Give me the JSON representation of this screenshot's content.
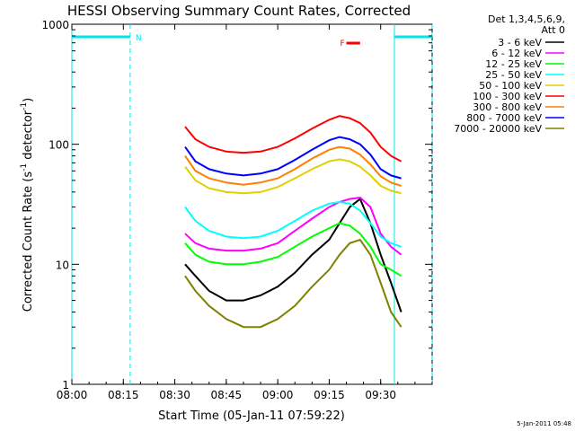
{
  "chart_data": {
    "type": "line",
    "title": "HESSI Observing Summary Count Rates, Corrected",
    "xlabel": "Start Time (05-Jan-11 07:59:22)",
    "ylabel_main": "Corrected Count Rate (s",
    "ylabel_sup1": "-1",
    "ylabel_mid": " detector",
    "ylabel_sup2": "-1",
    "ylabel_end": ")",
    "x_range_minutes": [
      480,
      585
    ],
    "y_range": [
      1,
      1000
    ],
    "y_scale": "log",
    "x_ticks": [
      "08:00",
      "08:15",
      "08:30",
      "08:45",
      "09:00",
      "09:15",
      "09:30"
    ],
    "y_ticks": [
      "1",
      "10",
      "100",
      "1000"
    ],
    "legend_header_1": "Det 1,3,4,5,6,9,",
    "legend_header_2": "Att 0",
    "legend_position": "right",
    "series": [
      {
        "name": "3 - 6 keV",
        "color": "#000000",
        "x": [
          513,
          516,
          520,
          525,
          530,
          535,
          540,
          545,
          550,
          555,
          558,
          561,
          564,
          567,
          570,
          573,
          576
        ],
        "y": [
          10,
          8,
          6,
          5,
          5,
          5.5,
          6.5,
          8.5,
          12,
          16,
          22,
          30,
          35,
          22,
          12,
          7,
          4
        ]
      },
      {
        "name": "6 - 12 keV",
        "color": "#ff00ff",
        "x": [
          513,
          516,
          520,
          525,
          530,
          535,
          540,
          545,
          550,
          555,
          558,
          561,
          564,
          567,
          570,
          573,
          576
        ],
        "y": [
          18,
          15,
          13.5,
          13,
          13,
          13.5,
          15,
          19,
          24,
          30,
          33,
          35,
          36,
          30,
          18,
          14,
          12
        ]
      },
      {
        "name": "12 - 25 keV",
        "color": "#00ff00",
        "x": [
          513,
          516,
          520,
          525,
          530,
          535,
          540,
          545,
          550,
          555,
          558,
          561,
          564,
          567,
          570,
          573,
          576
        ],
        "y": [
          15,
          12,
          10.5,
          10,
          10,
          10.5,
          11.5,
          14,
          17,
          20,
          22,
          21,
          18,
          14,
          10,
          9,
          8
        ]
      },
      {
        "name": "25 - 50 keV",
        "color": "#00ffff",
        "x": [
          513,
          516,
          520,
          525,
          530,
          535,
          540,
          545,
          550,
          555,
          558,
          561,
          564,
          567,
          570,
          573,
          576
        ],
        "y": [
          30,
          23,
          19,
          17,
          16.5,
          17,
          19,
          23,
          28,
          32,
          33,
          32,
          28,
          22,
          17,
          15,
          14
        ]
      },
      {
        "name": "50 - 100 keV",
        "color": "#e0d000",
        "x": [
          513,
          516,
          520,
          525,
          530,
          535,
          540,
          545,
          550,
          555,
          558,
          561,
          564,
          567,
          570,
          573,
          576
        ],
        "y": [
          65,
          50,
          43,
          40,
          39,
          40,
          44,
          52,
          62,
          72,
          75,
          72,
          65,
          55,
          45,
          41,
          39
        ]
      },
      {
        "name": "100 - 300 keV",
        "color": "#ff0000",
        "x": [
          513,
          516,
          520,
          525,
          530,
          535,
          540,
          545,
          550,
          555,
          558,
          561,
          564,
          567,
          570,
          573,
          576
        ],
        "y": [
          140,
          110,
          95,
          87,
          85,
          87,
          95,
          112,
          135,
          160,
          172,
          165,
          150,
          125,
          95,
          80,
          72
        ]
      },
      {
        "name": "300 - 800 keV",
        "color": "#ff8000",
        "x": [
          513,
          516,
          520,
          525,
          530,
          535,
          540,
          545,
          550,
          555,
          558,
          561,
          564,
          567,
          570,
          573,
          576
        ],
        "y": [
          80,
          60,
          52,
          48,
          46,
          48,
          52,
          62,
          76,
          90,
          95,
          92,
          82,
          68,
          54,
          48,
          45
        ]
      },
      {
        "name": "800 - 7000 keV",
        "color": "#0000ff",
        "x": [
          513,
          516,
          520,
          525,
          530,
          535,
          540,
          545,
          550,
          555,
          558,
          561,
          564,
          567,
          570,
          573,
          576
        ],
        "y": [
          95,
          72,
          62,
          57,
          55,
          57,
          62,
          74,
          90,
          108,
          115,
          110,
          100,
          82,
          62,
          55,
          52
        ]
      },
      {
        "name": "7000 - 20000 keV",
        "color": "#808000",
        "x": [
          513,
          516,
          520,
          525,
          530,
          535,
          540,
          545,
          550,
          555,
          558,
          561,
          564,
          567,
          570,
          573,
          576
        ],
        "y": [
          8,
          6,
          4.5,
          3.5,
          3,
          3,
          3.5,
          4.5,
          6.5,
          9,
          12,
          15,
          16,
          12,
          7,
          4,
          3
        ]
      }
    ],
    "annotations": {
      "night_label": "N",
      "flare_label": "F",
      "night_intervals": [
        [
          480,
          497
        ],
        [
          574,
          585
        ]
      ],
      "flare_interval": [
        560,
        564
      ],
      "dashed_vlines": [
        497,
        585
      ],
      "solid_vlines": [
        480,
        574
      ]
    },
    "footer_date": "5-Jan-2011 05:48",
    "colors": {
      "axis": "#000000",
      "night_bar": "#00e5ee",
      "flare_bar": "#ff0000"
    }
  }
}
